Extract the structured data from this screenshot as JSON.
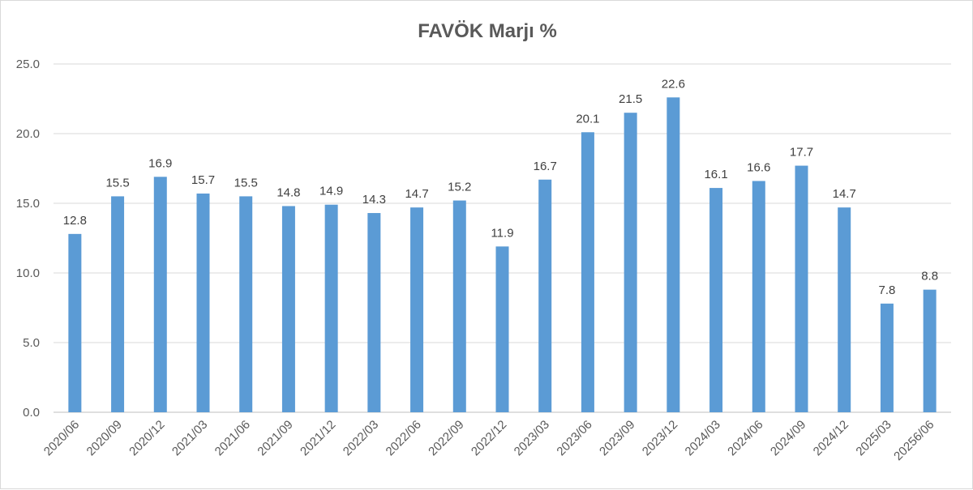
{
  "chart_data": {
    "type": "bar",
    "title": "FAVÖK Marjı %",
    "categories": [
      "2020/06",
      "2020/09",
      "2020/12",
      "2021/03",
      "2021/06",
      "2021/09",
      "2021/12",
      "2022/03",
      "2022/06",
      "2022/09",
      "2022/12",
      "2023/03",
      "2023/06",
      "2023/09",
      "2023/12",
      "2024/03",
      "2024/06",
      "2024/09",
      "2024/12",
      "2025/03",
      "20256/06"
    ],
    "values": [
      12.8,
      15.5,
      16.9,
      15.7,
      15.5,
      14.8,
      14.9,
      14.3,
      14.7,
      15.2,
      11.9,
      16.7,
      20.1,
      21.5,
      22.6,
      16.1,
      16.6,
      17.7,
      14.7,
      7.8,
      8.8
    ],
    "data_labels": [
      "12.8",
      "15.5",
      "16.9",
      "15.7",
      "15.5",
      "14.8",
      "14.9",
      "14.3",
      "14.7",
      "15.2",
      "11.9",
      "16.7",
      "20.1",
      "21.5",
      "22.6",
      "16.1",
      "16.6",
      "17.7",
      "14.7",
      "7.8",
      "8.8"
    ],
    "y_ticks": [
      "0.0",
      "5.0",
      "10.0",
      "15.0",
      "20.0",
      "25.0"
    ],
    "ylim": [
      0,
      25
    ],
    "grid": true,
    "legend": "none",
    "bar_color": "#5b9bd5"
  }
}
